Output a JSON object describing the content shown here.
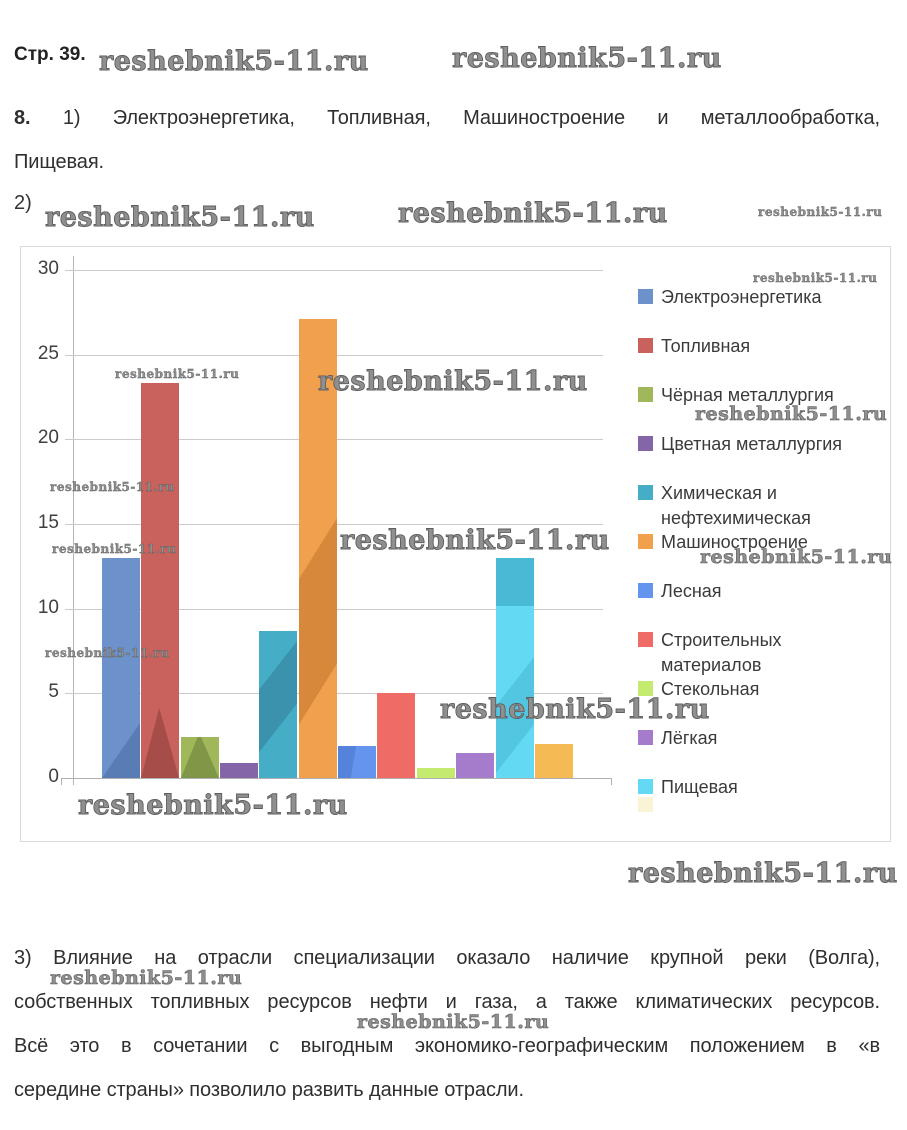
{
  "page": {
    "title": "Стр. 39."
  },
  "watermark": {
    "text": "reshebnik5-11.ru"
  },
  "para8": {
    "num": "8.",
    "line1": "1) Электроэнергетика, Топливная, Машиностроение и металлообработка,",
    "line2": "Пищевая."
  },
  "section2_label": "2)",
  "para3": {
    "lines": [
      "3) Влияние на отрасли специализации оказало наличие крупной реки (Волга),",
      "собственных топливных ресурсов нефти и газа, а также климатических ресурсов.",
      "Всё это в сочетании с выгодным экономико-географическим положением в «в",
      "середине страны» позволило развить данные отрасли."
    ]
  },
  "chart_data": {
    "type": "bar",
    "title": "",
    "xlabel": "",
    "ylabel": "",
    "ylim": [
      0,
      30
    ],
    "yticks": [
      0,
      5,
      10,
      15,
      20,
      25,
      30
    ],
    "grid": true,
    "legend_position": "right",
    "categories": [
      "Электроэнергетика",
      "Топливная",
      "Чёрная металлургия",
      "Цветная металлургия",
      "Химическая и нефтехимическая",
      "Машиностроение",
      "Лесная",
      "Строительных материалов",
      "Стекольная",
      "Лёгкая",
      "Пищевая",
      ""
    ],
    "bars": [
      {
        "label": "Электроэнергетика",
        "value": 13,
        "color": "#6D92CB"
      },
      {
        "label": "Топливная",
        "value": 23.3,
        "color": "#C9615D"
      },
      {
        "label": "Чёрная металлургия",
        "value": 2.4,
        "color": "#A1B85A"
      },
      {
        "label": "Цветная металлургия",
        "value": 0.9,
        "color": "#8465A8"
      },
      {
        "label": "Химическая и нефтехимическая",
        "value": 8.7,
        "color": "#46ADC7"
      },
      {
        "label": "Машиностроение",
        "value": 27.1,
        "color": "#F1A04E"
      },
      {
        "label": "Лесная",
        "value": 1.9,
        "color": "#6495EE"
      },
      {
        "label": "Строительных материалов",
        "value": 5,
        "color": "#EF6B66"
      },
      {
        "label": "Стекольная",
        "value": 0.6,
        "color": "#C5EA70"
      },
      {
        "label": "Лёгкая",
        "value": 1.5,
        "color": "#A57BCB"
      },
      {
        "label": "Пищевая",
        "value": 13,
        "color": "#63D9F4"
      },
      {
        "label": "",
        "value": 2,
        "color": "#F6BA55"
      }
    ],
    "legend": [
      {
        "label": "Электроэнергетика",
        "color": "#6D92CB"
      },
      {
        "label": "Топливная",
        "color": "#C9615D"
      },
      {
        "label": "Чёрная металлургия",
        "color": "#A1B85A"
      },
      {
        "label": "Цветная металлургия",
        "color": "#8465A8"
      },
      {
        "label": "Химическая и\nнефтехимическая",
        "color": "#46ADC7"
      },
      {
        "label": "Машиностроение",
        "color": "#F1A04E"
      },
      {
        "label": "Лесная",
        "color": "#6495EE"
      },
      {
        "label": "Строительных\nматериалов",
        "color": "#EF6B66"
      },
      {
        "label": "Стекольная",
        "color": "#C5EA70"
      },
      {
        "label": "Лёгкая",
        "color": "#A57BCB"
      },
      {
        "label": "Пищевая",
        "color": "#63D9F4"
      },
      {
        "label": "",
        "color": "#FBF3D5"
      }
    ]
  }
}
